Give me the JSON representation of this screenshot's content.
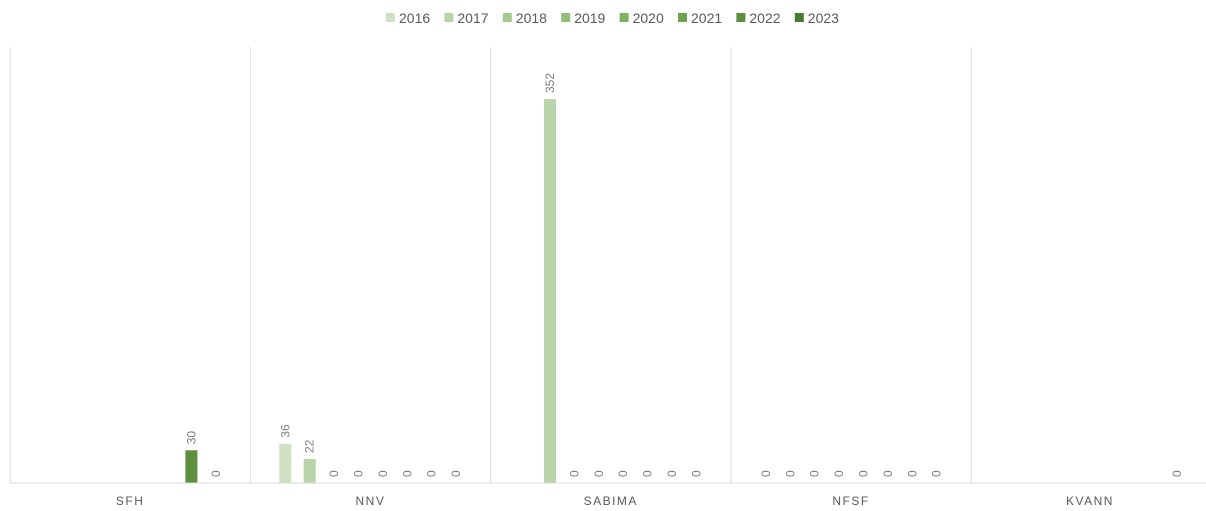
{
  "chart_data": {
    "type": "bar",
    "categories": [
      "SFH",
      "NNV",
      "SABIMA",
      "NFSF",
      "KVANN"
    ],
    "series": [
      {
        "name": "2016",
        "color": "#cfe0c3",
        "values": [
          null,
          36,
          null,
          0,
          null
        ]
      },
      {
        "name": "2017",
        "color": "#b9d4a8",
        "values": [
          null,
          22,
          352,
          0,
          null
        ]
      },
      {
        "name": "2018",
        "color": "#a6c98f",
        "values": [
          null,
          0,
          0,
          0,
          null
        ]
      },
      {
        "name": "2019",
        "color": "#93be79",
        "values": [
          null,
          0,
          0,
          0,
          null
        ]
      },
      {
        "name": "2020",
        "color": "#7fb35f",
        "values": [
          null,
          0,
          0,
          0,
          null
        ]
      },
      {
        "name": "2021",
        "color": "#6ea24e",
        "values": [
          null,
          0,
          0,
          0,
          null
        ]
      },
      {
        "name": "2022",
        "color": "#5d8f3e",
        "values": [
          30,
          0,
          0,
          0,
          null
        ]
      },
      {
        "name": "2023",
        "color": "#4a7a2f",
        "values": [
          0,
          0,
          0,
          0,
          0
        ]
      }
    ],
    "ylim": [
      0,
      400
    ],
    "grid": false,
    "legend_position": "top"
  }
}
